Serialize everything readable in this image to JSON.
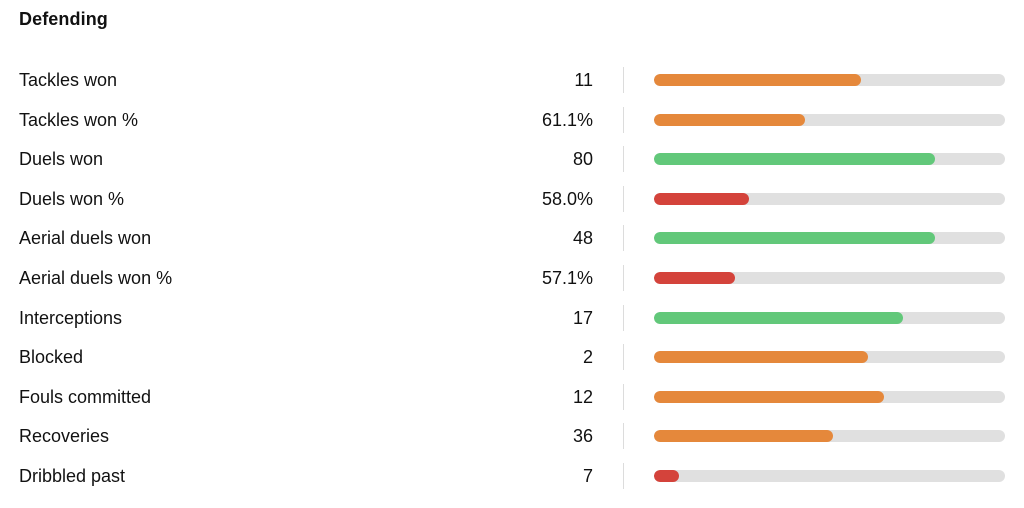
{
  "section": {
    "title": "Defending"
  },
  "colors": {
    "orange": "#e5883b",
    "green": "#62c87a",
    "red": "#d4433b",
    "track": "#e0e0e0"
  },
  "stats": [
    {
      "label": "Tackles won",
      "value": "11",
      "fill": 0.59,
      "color": "orange"
    },
    {
      "label": "Tackles won %",
      "value": "61.1%",
      "fill": 0.43,
      "color": "orange"
    },
    {
      "label": "Duels won",
      "value": "80",
      "fill": 0.8,
      "color": "green"
    },
    {
      "label": "Duels won %",
      "value": "58.0%",
      "fill": 0.27,
      "color": "red"
    },
    {
      "label": "Aerial duels won",
      "value": "48",
      "fill": 0.8,
      "color": "green"
    },
    {
      "label": "Aerial duels won %",
      "value": "57.1%",
      "fill": 0.23,
      "color": "red"
    },
    {
      "label": "Interceptions",
      "value": "17",
      "fill": 0.71,
      "color": "green"
    },
    {
      "label": "Blocked",
      "value": "2",
      "fill": 0.61,
      "color": "orange"
    },
    {
      "label": "Fouls committed",
      "value": "12",
      "fill": 0.655,
      "color": "orange"
    },
    {
      "label": "Recoveries",
      "value": "36",
      "fill": 0.51,
      "color": "orange"
    },
    {
      "label": "Dribbled past",
      "value": "7",
      "fill": 0.07,
      "color": "red"
    }
  ]
}
